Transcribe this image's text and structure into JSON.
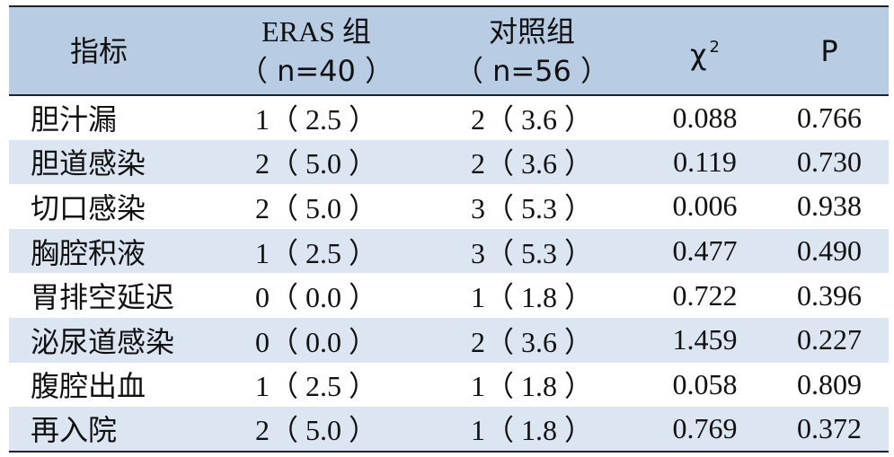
{
  "table": {
    "headers": {
      "item": "指标",
      "eras_line1": "ERAS 组",
      "eras_line2": "（ n=40 ）",
      "control_line1": "对照组",
      "control_line2": "（ n=56 ）",
      "chi_symbol": "χ",
      "chi_superscript": "2",
      "p": "P"
    },
    "rows": [
      {
        "item": "胆汁漏",
        "eras": "1（ 2.5 ）",
        "control": "2（ 3.6 ）",
        "chi2": "0.088",
        "p": "0.766"
      },
      {
        "item": "胆道感染",
        "eras": "2（ 5.0 ）",
        "control": "2（ 3.6 ）",
        "chi2": "0.119",
        "p": "0.730"
      },
      {
        "item": "切口感染",
        "eras": "2（ 5.0 ）",
        "control": "3（ 5.3 ）",
        "chi2": "0.006",
        "p": "0.938"
      },
      {
        "item": "胸腔积液",
        "eras": "1（ 2.5 ）",
        "control": "3（ 5.3 ）",
        "chi2": "0.477",
        "p": "0.490"
      },
      {
        "item": "胃排空延迟",
        "eras": "0（ 0.0 ）",
        "control": "1（ 1.8 ）",
        "chi2": "0.722",
        "p": "0.396"
      },
      {
        "item": "泌尿道感染",
        "eras": "0（ 0.0 ）",
        "control": "2（ 3.6 ）",
        "chi2": "1.459",
        "p": "0.227"
      },
      {
        "item": "腹腔出血",
        "eras": "1（ 2.5 ）",
        "control": "1（ 1.8 ）",
        "chi2": "0.058",
        "p": "0.809"
      },
      {
        "item": "再入院",
        "eras": "2（ 5.0 ）",
        "control": "1（ 1.8 ）",
        "chi2": "0.769",
        "p": "0.372"
      }
    ]
  }
}
